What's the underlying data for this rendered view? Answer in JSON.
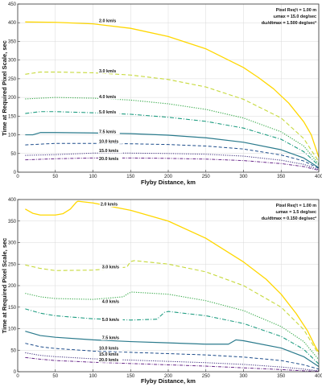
{
  "chart_data": [
    {
      "type": "line",
      "xlabel": "Flyby Distance, km",
      "ylabel": "Time at Required Pixel Scale, sec",
      "xlim": [
        0,
        400
      ],
      "ylim": [
        0,
        450
      ],
      "xticks": [
        0,
        50,
        100,
        150,
        200,
        250,
        300,
        350,
        400
      ],
      "yticks": [
        0,
        50,
        100,
        150,
        200,
        250,
        300,
        350,
        400,
        450
      ],
      "grid": true,
      "info": {
        "line1": "Pixel Req't = 1.00 m",
        "line2": "ω_max = 15.0 deg/sec",
        "line3": "dω/dt_max = 1.500 deg/sec²"
      },
      "series": [
        {
          "name": "2.0 km/s",
          "color": "#FFD700",
          "dash": "solid",
          "width": 1.3,
          "label_xy": [
            108,
            402
          ],
          "x": [
            10,
            50,
            100,
            150,
            200,
            250,
            300,
            320,
            340,
            360,
            380,
            390,
            400
          ],
          "y": [
            402,
            401,
            397,
            385,
            363,
            330,
            280,
            253,
            223,
            185,
            135,
            100,
            40
          ]
        },
        {
          "name": "3.0 km/s",
          "color": "#C6D93A",
          "dash": "5,3",
          "width": 1.1,
          "label_xy": [
            108,
            267
          ],
          "x": [
            10,
            30,
            50,
            100,
            150,
            200,
            250,
            300,
            350,
            380,
            400
          ],
          "y": [
            262,
            268,
            268,
            266,
            260,
            248,
            228,
            195,
            145,
            90,
            28
          ]
        },
        {
          "name": "4.0 km/s",
          "color": "#33A845",
          "dash": "1.2,1.6",
          "width": 1.1,
          "label_xy": [
            108,
            198
          ],
          "x": [
            10,
            50,
            100,
            150,
            200,
            250,
            300,
            350,
            380,
            400
          ],
          "y": [
            196,
            200,
            198,
            193,
            183,
            168,
            145,
            108,
            70,
            22
          ]
        },
        {
          "name": "5.0 km/s",
          "color": "#1E9C80",
          "dash": "5,2,1,2",
          "width": 1.1,
          "label_xy": [
            108,
            157
          ],
          "x": [
            10,
            30,
            50,
            100,
            150,
            200,
            250,
            300,
            350,
            380,
            400
          ],
          "y": [
            157,
            162,
            162,
            159,
            155,
            147,
            136,
            118,
            88,
            55,
            18
          ]
        },
        {
          "name": "7.5 km/s",
          "color": "#2A7A8C",
          "dash": "solid",
          "width": 1.2,
          "label_xy": [
            108,
            104
          ],
          "x": [
            10,
            20,
            30,
            50,
            100,
            150,
            200,
            250,
            300,
            350,
            380,
            400
          ],
          "y": [
            100,
            100,
            106,
            106,
            105,
            103,
            99,
            92,
            80,
            60,
            38,
            12
          ]
        },
        {
          "name": "10.0 km/s",
          "color": "#1F4E8C",
          "dash": "4,2.5",
          "width": 1.0,
          "label_xy": [
            108,
            79
          ],
          "x": [
            10,
            50,
            100,
            150,
            200,
            250,
            300,
            350,
            380,
            400
          ],
          "y": [
            73,
            77,
            77,
            76,
            74,
            70,
            62,
            46,
            30,
            10
          ]
        },
        {
          "name": "15.0 km/s",
          "color": "#3A2A7A",
          "dash": "1.2,1.5",
          "width": 1.0,
          "label_xy": [
            108,
            54
          ],
          "x": [
            10,
            50,
            100,
            150,
            200,
            250,
            300,
            350,
            380,
            400
          ],
          "y": [
            45,
            47,
            51,
            51,
            50,
            48,
            43,
            32,
            21,
            7
          ]
        },
        {
          "name": "20.0 km/s",
          "color": "#6A2A8A",
          "dash": "4,1.5,1,1.5",
          "width": 1.0,
          "label_xy": [
            108,
            32
          ],
          "x": [
            10,
            50,
            100,
            150,
            200,
            250,
            300,
            350,
            380,
            400
          ],
          "y": [
            33,
            36,
            38,
            38,
            37,
            35,
            31,
            23,
            15,
            5
          ]
        }
      ]
    },
    {
      "type": "line",
      "xlabel": "Flyby Distance, km",
      "ylabel": "Time at Required Pixel Scale, sec",
      "xlim": [
        0,
        400
      ],
      "ylim": [
        0,
        400
      ],
      "xticks": [
        0,
        50,
        100,
        150,
        200,
        250,
        300,
        350,
        400
      ],
      "yticks": [
        0,
        50,
        100,
        150,
        200,
        250,
        300,
        350,
        400
      ],
      "grid": true,
      "info": {
        "line1": "Pixel Req't = 1.00 m",
        "line2": "ω_max = 1.5 deg/sec",
        "line3": "dω/dt_max = 0.150 deg/sec²"
      },
      "series": [
        {
          "name": "2.0 km/s",
          "color": "#FFD700",
          "dash": "solid",
          "width": 1.3,
          "label_xy": [
            110,
            386
          ],
          "x": [
            10,
            20,
            30,
            50,
            60,
            70,
            78,
            80,
            100,
            150,
            200,
            250,
            300,
            330,
            350,
            370,
            385,
            395,
            400
          ],
          "y": [
            378,
            368,
            364,
            364,
            367,
            378,
            394,
            396,
            392,
            375,
            350,
            310,
            255,
            215,
            180,
            135,
            95,
            60,
            45
          ]
        },
        {
          "name": "3.0 km/s",
          "color": "#C6D93A",
          "dash": "5,3",
          "width": 1.1,
          "label_xy": [
            112,
            240
          ],
          "x": [
            10,
            30,
            50,
            100,
            145,
            150,
            155,
            200,
            250,
            300,
            350,
            380,
            400
          ],
          "y": [
            248,
            240,
            235,
            236,
            243,
            256,
            258,
            250,
            232,
            200,
            150,
            98,
            40
          ]
        },
        {
          "name": "4.0 km/s",
          "color": "#33A845",
          "dash": "1.2,1.6",
          "width": 1.1,
          "label_xy": [
            112,
            160
          ],
          "x": [
            10,
            30,
            50,
            100,
            140,
            148,
            152,
            200,
            250,
            300,
            350,
            380,
            400
          ],
          "y": [
            182,
            174,
            170,
            168,
            174,
            183,
            185,
            180,
            165,
            142,
            105,
            70,
            28
          ]
        },
        {
          "name": "5.0 km/s",
          "color": "#1E9C80",
          "dash": "5,2,1,2",
          "width": 1.1,
          "label_xy": [
            112,
            118
          ],
          "x": [
            10,
            30,
            50,
            100,
            150,
            185,
            195,
            200,
            250,
            300,
            350,
            380,
            400
          ],
          "y": [
            146,
            136,
            130,
            123,
            120,
            122,
            138,
            140,
            130,
            112,
            82,
            52,
            18
          ]
        },
        {
          "name": "7.5 km/s",
          "color": "#2A7A8C",
          "dash": "solid",
          "width": 1.2,
          "label_xy": [
            112,
            76
          ],
          "x": [
            10,
            30,
            50,
            100,
            150,
            200,
            250,
            280,
            290,
            300,
            350,
            380,
            400
          ],
          "y": [
            94,
            84,
            80,
            74,
            70,
            67,
            64,
            64,
            74,
            72,
            55,
            35,
            12
          ]
        },
        {
          "name": "10.0 km/s",
          "color": "#1F4E8C",
          "dash": "4,2.5",
          "width": 1.0,
          "label_xy": [
            108,
            51
          ],
          "x": [
            10,
            30,
            50,
            100,
            150,
            200,
            250,
            300,
            350,
            380,
            400
          ],
          "y": [
            66,
            58,
            54,
            48,
            45,
            42,
            39,
            34,
            26,
            16,
            6
          ]
        },
        {
          "name": "15.0 km/s",
          "color": "#3A2A7A",
          "dash": "1.2,1.5",
          "width": 1.0,
          "label_xy": [
            108,
            37
          ],
          "x": [
            10,
            30,
            50,
            100,
            150,
            200,
            250,
            300,
            350,
            380,
            400
          ],
          "y": [
            44,
            38,
            35,
            30,
            27,
            24,
            21,
            17,
            11,
            6,
            2
          ]
        },
        {
          "name": "20.0 km/s",
          "color": "#6A2A8A",
          "dash": "4,1.5,1,1.5",
          "width": 1.0,
          "label_xy": [
            108,
            24
          ],
          "x": [
            10,
            30,
            50,
            100,
            150,
            200,
            250,
            300,
            350,
            380,
            400
          ],
          "y": [
            33,
            29,
            26,
            22,
            19,
            16,
            13,
            9,
            5,
            2,
            1
          ]
        }
      ]
    }
  ]
}
